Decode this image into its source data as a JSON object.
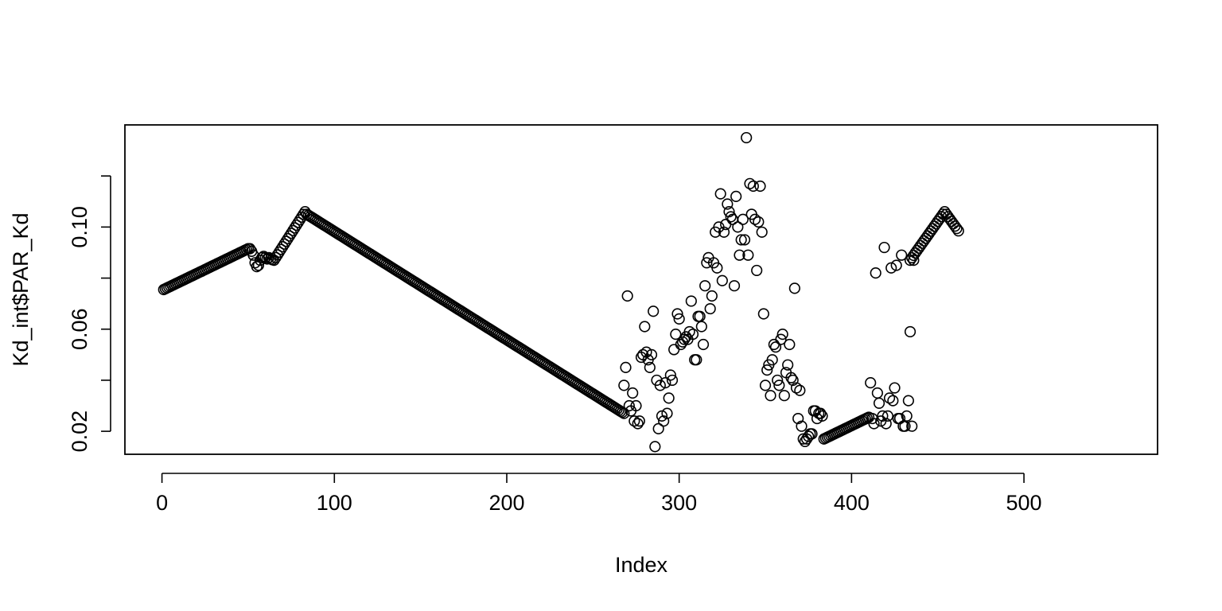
{
  "chart_data": {
    "type": "scatter",
    "title": "",
    "xlabel": "Index",
    "ylabel": "Kd_int$PAR_Kd",
    "xlim": [
      -21.5,
      577.5
    ],
    "ylim": [
      0.011,
      0.14
    ],
    "xticks": [
      0,
      100,
      200,
      300,
      400,
      500
    ],
    "xtick_labels": [
      "0",
      "100",
      "200",
      "300",
      "400",
      "500"
    ],
    "yticks": [
      0.02,
      0.04,
      0.06,
      0.08,
      0.1,
      0.12
    ],
    "ytick_labels": [
      "0.02",
      "",
      "0.06",
      "",
      "0.10",
      ""
    ],
    "grid": false,
    "legend": "none",
    "marker": "open-circle",
    "color": "#000000",
    "segments": [
      {
        "from": [
          1,
          0.0755
        ],
        "to": [
          50,
          0.0915
        ]
      },
      {
        "from": [
          65,
          0.087
        ],
        "to": [
          83,
          0.106
        ]
      },
      {
        "from": [
          84,
          0.105
        ],
        "to": [
          268,
          0.027
        ]
      },
      {
        "from": [
          384,
          0.017
        ],
        "to": [
          410,
          0.0255
        ]
      },
      {
        "from": [
          434,
          0.087
        ],
        "to": [
          454,
          0.106
        ]
      },
      {
        "from": [
          455,
          0.105
        ],
        "to": [
          462,
          0.0985
        ]
      }
    ],
    "points": [
      [
        51,
        0.0915
      ],
      [
        52,
        0.0905
      ],
      [
        53,
        0.089
      ],
      [
        54,
        0.086
      ],
      [
        55,
        0.0845
      ],
      [
        56,
        0.085
      ],
      [
        57,
        0.087
      ],
      [
        58,
        0.088
      ],
      [
        59,
        0.0885
      ],
      [
        60,
        0.088
      ],
      [
        61,
        0.0875
      ],
      [
        62,
        0.088
      ],
      [
        63,
        0.0875
      ],
      [
        64,
        0.0872
      ],
      [
        268,
        0.038
      ],
      [
        269,
        0.045
      ],
      [
        270,
        0.073
      ],
      [
        271,
        0.03
      ],
      [
        272,
        0.028
      ],
      [
        273,
        0.035
      ],
      [
        274,
        0.024
      ],
      [
        275,
        0.03
      ],
      [
        276,
        0.023
      ],
      [
        277,
        0.024
      ],
      [
        278,
        0.049
      ],
      [
        279,
        0.05
      ],
      [
        280,
        0.061
      ],
      [
        281,
        0.051
      ],
      [
        282,
        0.048
      ],
      [
        283,
        0.045
      ],
      [
        284,
        0.05
      ],
      [
        285,
        0.067
      ],
      [
        286,
        0.014
      ],
      [
        287,
        0.04
      ],
      [
        288,
        0.021
      ],
      [
        289,
        0.038
      ],
      [
        290,
        0.026
      ],
      [
        291,
        0.024
      ],
      [
        292,
        0.039
      ],
      [
        293,
        0.027
      ],
      [
        294,
        0.033
      ],
      [
        295,
        0.042
      ],
      [
        296,
        0.04
      ],
      [
        297,
        0.052
      ],
      [
        298,
        0.058
      ],
      [
        299,
        0.066
      ],
      [
        300,
        0.064
      ],
      [
        301,
        0.054
      ],
      [
        302,
        0.055
      ],
      [
        303,
        0.056
      ],
      [
        304,
        0.057
      ],
      [
        305,
        0.056
      ],
      [
        306,
        0.059
      ],
      [
        307,
        0.071
      ],
      [
        308,
        0.058
      ],
      [
        309,
        0.048
      ],
      [
        310,
        0.048
      ],
      [
        311,
        0.065
      ],
      [
        312,
        0.065
      ],
      [
        313,
        0.061
      ],
      [
        314,
        0.054
      ],
      [
        315,
        0.077
      ],
      [
        316,
        0.086
      ],
      [
        317,
        0.088
      ],
      [
        318,
        0.068
      ],
      [
        319,
        0.073
      ],
      [
        320,
        0.086
      ],
      [
        321,
        0.098
      ],
      [
        322,
        0.084
      ],
      [
        323,
        0.1
      ],
      [
        324,
        0.113
      ],
      [
        325,
        0.079
      ],
      [
        326,
        0.098
      ],
      [
        327,
        0.101
      ],
      [
        328,
        0.109
      ],
      [
        329,
        0.106
      ],
      [
        330,
        0.104
      ],
      [
        331,
        0.103
      ],
      [
        332,
        0.077
      ],
      [
        333,
        0.112
      ],
      [
        334,
        0.1
      ],
      [
        335,
        0.089
      ],
      [
        336,
        0.095
      ],
      [
        337,
        0.103
      ],
      [
        338,
        0.095
      ],
      [
        339,
        0.135
      ],
      [
        340,
        0.089
      ],
      [
        341,
        0.117
      ],
      [
        342,
        0.105
      ],
      [
        343,
        0.116
      ],
      [
        344,
        0.103
      ],
      [
        345,
        0.083
      ],
      [
        346,
        0.102
      ],
      [
        347,
        0.116
      ],
      [
        348,
        0.098
      ],
      [
        349,
        0.066
      ],
      [
        350,
        0.038
      ],
      [
        351,
        0.044
      ],
      [
        352,
        0.046
      ],
      [
        353,
        0.034
      ],
      [
        354,
        0.048
      ],
      [
        355,
        0.054
      ],
      [
        356,
        0.053
      ],
      [
        357,
        0.04
      ],
      [
        358,
        0.038
      ],
      [
        359,
        0.056
      ],
      [
        360,
        0.058
      ],
      [
        361,
        0.034
      ],
      [
        362,
        0.043
      ],
      [
        363,
        0.046
      ],
      [
        364,
        0.054
      ],
      [
        365,
        0.041
      ],
      [
        366,
        0.04
      ],
      [
        367,
        0.076
      ],
      [
        368,
        0.037
      ],
      [
        369,
        0.025
      ],
      [
        370,
        0.036
      ],
      [
        371,
        0.022
      ],
      [
        372,
        0.017
      ],
      [
        373,
        0.016
      ],
      [
        374,
        0.017
      ],
      [
        375,
        0.018
      ],
      [
        376,
        0.019
      ],
      [
        377,
        0.019
      ],
      [
        378,
        0.028
      ],
      [
        379,
        0.028
      ],
      [
        380,
        0.025
      ],
      [
        381,
        0.027
      ],
      [
        382,
        0.027
      ],
      [
        383,
        0.026
      ],
      [
        411,
        0.039
      ],
      [
        412,
        0.025
      ],
      [
        413,
        0.023
      ],
      [
        414,
        0.082
      ],
      [
        415,
        0.035
      ],
      [
        416,
        0.031
      ],
      [
        417,
        0.024
      ],
      [
        418,
        0.026
      ],
      [
        419,
        0.092
      ],
      [
        420,
        0.023
      ],
      [
        421,
        0.026
      ],
      [
        422,
        0.033
      ],
      [
        423,
        0.084
      ],
      [
        424,
        0.032
      ],
      [
        425,
        0.037
      ],
      [
        426,
        0.085
      ],
      [
        427,
        0.025
      ],
      [
        428,
        0.025
      ],
      [
        429,
        0.089
      ],
      [
        430,
        0.022
      ],
      [
        431,
        0.022
      ],
      [
        432,
        0.026
      ],
      [
        433,
        0.032
      ],
      [
        434,
        0.059
      ],
      [
        435,
        0.022
      ],
      [
        436,
        0.087
      ]
    ]
  }
}
